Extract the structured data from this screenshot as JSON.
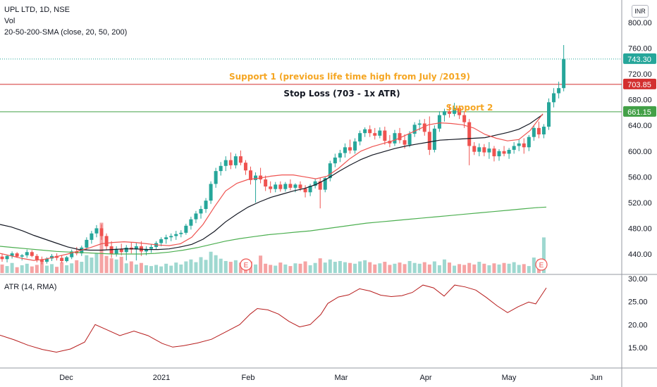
{
  "header": {
    "symbol": "UPL LTD, 1D, NSE",
    "volume_label": "Vol",
    "sma_label": "20-50-200-SMA (close, 20, 50, 200)",
    "currency": "INR"
  },
  "atr_label": "ATR (14, RMA)",
  "colors": {
    "up": "#26a69a",
    "down": "#ef5350",
    "up_vol": "#9ed8d0",
    "down_vol": "#f5a3a3",
    "sma20": "#ef5350",
    "sma50": "#131722",
    "sma200": "#4caf50",
    "atr": "#b71c1c",
    "support": "#f5a623",
    "red_line": "#d32f2f",
    "green_line": "#43a047",
    "cur_price": "#26a69a",
    "earnings": "#ef5350"
  },
  "annotations": {
    "support1": "Support 1 (previous life time high from July /2019)",
    "stop_loss": "Stop Loss (703 - 1x ATR)",
    "support2": "Support 2",
    "earnings_mark": "E"
  },
  "price_tags": {
    "current": "743.30",
    "resistance": "703.85",
    "support": "661.15"
  },
  "chart_data": {
    "type": "candlestick",
    "price_axis": {
      "ticks": [
        "800.00",
        "760.00",
        "720.00",
        "680.00",
        "640.00",
        "600.00",
        "560.00",
        "520.00",
        "480.00",
        "440.00"
      ],
      "range": [
        409,
        820
      ]
    },
    "atr_axis": {
      "ticks": [
        "30.00",
        "25.00",
        "20.00",
        "15.00"
      ],
      "range": [
        11,
        31
      ]
    },
    "x_axis": {
      "labels": [
        "Dec",
        "2021",
        "Feb",
        "Mar",
        "Apr",
        "May",
        "Jun"
      ]
    },
    "levels": {
      "current": 743.3,
      "resistance": 703.85,
      "support": 661.15
    },
    "candles": [
      [
        436,
        441,
        428,
        432
      ],
      [
        432,
        439,
        427,
        437
      ],
      [
        437,
        444,
        433,
        441
      ],
      [
        441,
        443,
        434,
        436
      ],
      [
        436,
        440,
        430,
        438
      ],
      [
        438,
        447,
        434,
        443
      ],
      [
        443,
        446,
        435,
        437
      ],
      [
        437,
        440,
        427,
        431
      ],
      [
        431,
        436,
        424,
        428
      ],
      [
        428,
        435,
        425,
        433
      ],
      [
        433,
        440,
        429,
        437
      ],
      [
        437,
        441,
        430,
        434
      ],
      [
        434,
        438,
        426,
        429
      ],
      [
        429,
        437,
        427,
        435
      ],
      [
        435,
        447,
        432,
        444
      ],
      [
        444,
        451,
        438,
        441
      ],
      [
        441,
        453,
        437,
        450
      ],
      [
        450,
        466,
        446,
        462
      ],
      [
        462,
        476,
        456,
        472
      ],
      [
        472,
        485,
        466,
        480
      ],
      [
        480,
        486,
        462,
        468
      ],
      [
        468,
        472,
        447,
        452
      ],
      [
        452,
        460,
        434,
        440
      ],
      [
        440,
        452,
        436,
        448
      ],
      [
        448,
        456,
        438,
        443
      ],
      [
        443,
        454,
        430,
        450
      ],
      [
        450,
        458,
        441,
        447
      ],
      [
        447,
        457,
        430,
        452
      ],
      [
        452,
        460,
        437,
        444
      ],
      [
        444,
        452,
        438,
        448
      ],
      [
        448,
        455,
        442,
        451
      ],
      [
        451,
        460,
        447,
        457
      ],
      [
        457,
        466,
        452,
        463
      ],
      [
        463,
        470,
        456,
        466
      ],
      [
        466,
        472,
        460,
        468
      ],
      [
        468,
        476,
        462,
        471
      ],
      [
        471,
        477,
        466,
        473
      ],
      [
        473,
        487,
        470,
        484
      ],
      [
        484,
        498,
        478,
        494
      ],
      [
        494,
        507,
        488,
        503
      ],
      [
        503,
        515,
        495,
        510
      ],
      [
        510,
        527,
        504,
        523
      ],
      [
        523,
        553,
        518,
        549
      ],
      [
        549,
        574,
        543,
        569
      ],
      [
        569,
        583,
        562,
        577
      ],
      [
        577,
        592,
        569,
        586
      ],
      [
        586,
        598,
        572,
        578
      ],
      [
        578,
        596,
        573,
        592
      ],
      [
        592,
        601,
        578,
        582
      ],
      [
        582,
        586,
        563,
        570
      ],
      [
        570,
        576,
        548,
        555
      ],
      [
        555,
        567,
        520,
        562
      ],
      [
        562,
        574,
        550,
        556
      ],
      [
        556,
        562,
        538,
        545
      ],
      [
        545,
        553,
        535,
        541
      ],
      [
        541,
        552,
        536,
        548
      ],
      [
        548,
        553,
        537,
        541
      ],
      [
        541,
        552,
        537,
        549
      ],
      [
        549,
        556,
        539,
        543
      ],
      [
        543,
        550,
        536,
        548
      ],
      [
        548,
        553,
        538,
        542
      ],
      [
        542,
        547,
        528,
        536
      ],
      [
        536,
        549,
        530,
        546
      ],
      [
        546,
        557,
        542,
        553
      ],
      [
        553,
        559,
        511,
        540
      ],
      [
        540,
        561,
        536,
        558
      ],
      [
        558,
        585,
        553,
        581
      ],
      [
        581,
        596,
        575,
        590
      ],
      [
        590,
        602,
        583,
        597
      ],
      [
        597,
        612,
        590,
        606
      ],
      [
        606,
        618,
        596,
        601
      ],
      [
        601,
        620,
        596,
        615
      ],
      [
        615,
        632,
        609,
        628
      ],
      [
        628,
        637,
        622,
        634
      ],
      [
        634,
        640,
        622,
        628
      ],
      [
        628,
        636,
        618,
        624
      ],
      [
        624,
        637,
        620,
        632
      ],
      [
        632,
        638,
        610,
        616
      ],
      [
        616,
        625,
        606,
        612
      ],
      [
        612,
        633,
        608,
        628
      ],
      [
        628,
        636,
        612,
        617
      ],
      [
        617,
        626,
        604,
        610
      ],
      [
        610,
        631,
        606,
        627
      ],
      [
        627,
        645,
        622,
        641
      ],
      [
        641,
        649,
        632,
        643
      ],
      [
        643,
        650,
        624,
        630
      ],
      [
        630,
        654,
        594,
        602
      ],
      [
        602,
        640,
        598,
        635
      ],
      [
        635,
        662,
        630,
        656
      ],
      [
        656,
        666,
        646,
        662
      ],
      [
        662,
        672,
        652,
        658
      ],
      [
        658,
        675,
        654,
        667
      ],
      [
        667,
        670,
        650,
        656
      ],
      [
        656,
        662,
        636,
        645
      ],
      [
        645,
        650,
        578,
        608
      ],
      [
        608,
        614,
        594,
        599
      ],
      [
        599,
        612,
        592,
        606
      ],
      [
        606,
        611,
        592,
        598
      ],
      [
        598,
        614,
        588,
        604
      ],
      [
        604,
        608,
        584,
        592
      ],
      [
        592,
        603,
        585,
        600
      ],
      [
        600,
        608,
        592,
        596
      ],
      [
        596,
        605,
        588,
        602
      ],
      [
        602,
        614,
        596,
        608
      ],
      [
        608,
        618,
        600,
        612
      ],
      [
        612,
        620,
        596,
        606
      ],
      [
        606,
        625,
        600,
        622
      ],
      [
        622,
        640,
        616,
        636
      ],
      [
        636,
        646,
        620,
        626
      ],
      [
        626,
        642,
        620,
        638
      ],
      [
        638,
        682,
        633,
        676
      ],
      [
        676,
        698,
        668,
        690
      ],
      [
        690,
        708,
        682,
        698
      ],
      [
        698,
        765,
        693,
        743
      ]
    ],
    "volume": [
      22,
      18,
      26,
      15,
      20,
      24,
      17,
      21,
      30,
      19,
      23,
      16,
      28,
      20,
      25,
      33,
      29,
      46,
      40,
      52,
      130,
      44,
      38,
      35,
      42,
      25,
      30,
      22,
      26,
      20,
      18,
      21,
      17,
      24,
      19,
      27,
      22,
      30,
      35,
      28,
      41,
      34,
      55,
      46,
      37,
      31,
      29,
      33,
      27,
      25,
      30,
      22,
      45,
      24,
      21,
      19,
      27,
      22,
      18,
      25,
      24,
      30,
      20,
      26,
      38,
      27,
      35,
      29,
      31,
      28,
      26,
      24,
      30,
      33,
      28,
      22,
      25,
      29,
      21,
      24,
      27,
      23,
      31,
      26,
      24,
      28,
      22,
      30,
      20,
      35,
      27,
      19,
      23,
      21,
      26,
      22,
      29,
      24,
      20,
      25,
      22,
      26,
      24,
      28,
      21,
      23,
      18,
      40,
      35,
      92
    ],
    "sma20": [
      [
        0,
        441
      ],
      [
        16,
        437
      ],
      [
        32,
        433
      ],
      [
        48,
        430
      ],
      [
        64,
        432
      ],
      [
        80,
        436
      ],
      [
        96,
        440
      ],
      [
        112,
        445
      ],
      [
        128,
        450
      ],
      [
        144,
        456
      ],
      [
        160,
        458
      ],
      [
        176,
        459
      ],
      [
        192,
        458
      ],
      [
        208,
        456
      ],
      [
        224,
        454
      ],
      [
        240,
        453
      ],
      [
        256,
        456
      ],
      [
        272,
        466
      ],
      [
        288,
        486
      ],
      [
        304,
        513
      ],
      [
        320,
        538
      ],
      [
        336,
        550
      ],
      [
        352,
        556
      ],
      [
        368,
        558
      ],
      [
        384,
        561
      ],
      [
        400,
        563
      ],
      [
        416,
        563
      ],
      [
        432,
        560
      ],
      [
        448,
        557
      ],
      [
        464,
        561
      ],
      [
        480,
        573
      ],
      [
        496,
        588
      ],
      [
        512,
        600
      ],
      [
        528,
        607
      ],
      [
        544,
        612
      ],
      [
        560,
        617
      ],
      [
        576,
        625
      ],
      [
        592,
        633
      ],
      [
        608,
        641
      ],
      [
        624,
        644
      ],
      [
        640,
        643
      ],
      [
        656,
        641
      ],
      [
        672,
        636
      ],
      [
        688,
        626
      ],
      [
        704,
        620
      ],
      [
        720,
        616
      ],
      [
        736,
        618
      ],
      [
        752,
        632
      ],
      [
        770,
        658
      ]
    ],
    "sma50": [
      [
        0,
        486
      ],
      [
        16,
        482
      ],
      [
        32,
        476
      ],
      [
        48,
        469
      ],
      [
        64,
        463
      ],
      [
        80,
        457
      ],
      [
        96,
        451
      ],
      [
        112,
        447
      ],
      [
        128,
        446
      ],
      [
        144,
        446
      ],
      [
        160,
        447
      ],
      [
        176,
        448
      ],
      [
        192,
        448
      ],
      [
        208,
        447
      ],
      [
        224,
        447
      ],
      [
        240,
        448
      ],
      [
        256,
        451
      ],
      [
        272,
        455
      ],
      [
        288,
        463
      ],
      [
        304,
        475
      ],
      [
        320,
        490
      ],
      [
        336,
        502
      ],
      [
        352,
        513
      ],
      [
        368,
        521
      ],
      [
        384,
        528
      ],
      [
        400,
        533
      ],
      [
        416,
        538
      ],
      [
        432,
        542
      ],
      [
        448,
        548
      ],
      [
        464,
        557
      ],
      [
        480,
        568
      ],
      [
        496,
        578
      ],
      [
        512,
        587
      ],
      [
        528,
        594
      ],
      [
        544,
        599
      ],
      [
        560,
        604
      ],
      [
        576,
        608
      ],
      [
        592,
        611
      ],
      [
        608,
        614
      ],
      [
        624,
        617
      ],
      [
        640,
        618
      ],
      [
        656,
        619
      ],
      [
        672,
        620
      ],
      [
        688,
        621
      ],
      [
        704,
        625
      ],
      [
        720,
        629
      ],
      [
        736,
        634
      ],
      [
        752,
        643
      ],
      [
        770,
        657
      ]
    ],
    "sma200": [
      [
        0,
        452
      ],
      [
        20,
        450
      ],
      [
        40,
        448
      ],
      [
        60,
        446
      ],
      [
        80,
        444
      ],
      [
        100,
        443
      ],
      [
        120,
        442
      ],
      [
        140,
        441
      ],
      [
        160,
        440
      ],
      [
        180,
        440
      ],
      [
        200,
        440
      ],
      [
        220,
        441
      ],
      [
        240,
        443
      ],
      [
        260,
        446
      ],
      [
        280,
        450
      ],
      [
        300,
        455
      ],
      [
        320,
        460
      ],
      [
        340,
        464
      ],
      [
        360,
        467
      ],
      [
        380,
        470
      ],
      [
        400,
        472
      ],
      [
        420,
        474
      ],
      [
        440,
        476
      ],
      [
        460,
        479
      ],
      [
        480,
        482
      ],
      [
        500,
        485
      ],
      [
        520,
        488
      ],
      [
        540,
        490
      ],
      [
        560,
        492
      ],
      [
        580,
        494
      ],
      [
        600,
        496
      ],
      [
        620,
        498
      ],
      [
        640,
        500
      ],
      [
        660,
        502
      ],
      [
        680,
        504
      ],
      [
        700,
        506
      ],
      [
        720,
        508
      ],
      [
        740,
        510
      ],
      [
        760,
        512
      ],
      [
        775,
        513
      ]
    ],
    "atr": [
      [
        0,
        17.7
      ],
      [
        20,
        16.7
      ],
      [
        40,
        15.5
      ],
      [
        60,
        14.6
      ],
      [
        80,
        14.0
      ],
      [
        100,
        14.7
      ],
      [
        120,
        16.2
      ],
      [
        135,
        20.0
      ],
      [
        150,
        19.0
      ],
      [
        170,
        17.6
      ],
      [
        190,
        18.6
      ],
      [
        210,
        17.6
      ],
      [
        230,
        15.9
      ],
      [
        245,
        15.1
      ],
      [
        260,
        15.4
      ],
      [
        280,
        16.0
      ],
      [
        300,
        16.8
      ],
      [
        320,
        18.4
      ],
      [
        340,
        20.0
      ],
      [
        355,
        22.3
      ],
      [
        365,
        23.5
      ],
      [
        380,
        23.2
      ],
      [
        395,
        22.3
      ],
      [
        410,
        20.7
      ],
      [
        425,
        19.5
      ],
      [
        440,
        20.0
      ],
      [
        455,
        22.2
      ],
      [
        465,
        24.6
      ],
      [
        480,
        26.0
      ],
      [
        495,
        26.5
      ],
      [
        510,
        27.8
      ],
      [
        525,
        27.3
      ],
      [
        540,
        26.4
      ],
      [
        555,
        26.1
      ],
      [
        570,
        26.3
      ],
      [
        585,
        27.0
      ],
      [
        600,
        28.6
      ],
      [
        615,
        28.0
      ],
      [
        630,
        26.2
      ],
      [
        645,
        28.6
      ],
      [
        660,
        28.2
      ],
      [
        675,
        27.5
      ],
      [
        690,
        25.9
      ],
      [
        705,
        24.1
      ],
      [
        720,
        22.6
      ],
      [
        735,
        23.9
      ],
      [
        750,
        24.9
      ],
      [
        760,
        24.5
      ],
      [
        775,
        28.0
      ]
    ]
  }
}
